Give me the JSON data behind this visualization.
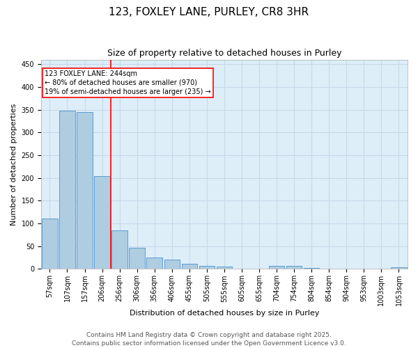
{
  "title": "123, FOXLEY LANE, PURLEY, CR8 3HR",
  "subtitle": "Size of property relative to detached houses in Purley",
  "xlabel": "Distribution of detached houses by size in Purley",
  "ylabel": "Number of detached properties",
  "categories": [
    "57sqm",
    "107sqm",
    "157sqm",
    "206sqm",
    "256sqm",
    "306sqm",
    "356sqm",
    "406sqm",
    "455sqm",
    "505sqm",
    "555sqm",
    "605sqm",
    "655sqm",
    "704sqm",
    "754sqm",
    "804sqm",
    "854sqm",
    "904sqm",
    "953sqm",
    "1003sqm",
    "1053sqm"
  ],
  "values": [
    110,
    347,
    345,
    204,
    84,
    46,
    25,
    20,
    11,
    7,
    6,
    1,
    1,
    7,
    7,
    2,
    1,
    0,
    1,
    0,
    4
  ],
  "bar_color": "#aecde1",
  "bar_edge_color": "#5b9bd5",
  "grid_color": "#c8d8e8",
  "background_color": "#ddeef9",
  "vline_color": "red",
  "annotation_text": "123 FOXLEY LANE: 244sqm\n← 80% of detached houses are smaller (970)\n19% of semi-detached houses are larger (235) →",
  "annotation_box_color": "red",
  "ylim": [
    0,
    460
  ],
  "yticks": [
    0,
    50,
    100,
    150,
    200,
    250,
    300,
    350,
    400,
    450
  ],
  "footnote": "Contains HM Land Registry data © Crown copyright and database right 2025.\nContains public sector information licensed under the Open Government Licence v3.0.",
  "title_fontsize": 11,
  "subtitle_fontsize": 9,
  "annotation_fontsize": 7,
  "tick_fontsize": 7,
  "ylabel_fontsize": 8,
  "xlabel_fontsize": 8,
  "footnote_fontsize": 6.5
}
